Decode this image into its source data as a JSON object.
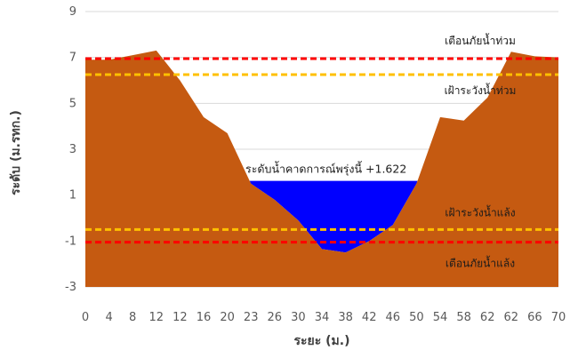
{
  "chart_data": {
    "type": "area",
    "title": "",
    "xlabel": "ระยะ (ม.)",
    "ylabel": "ระดับ (ม.รทก.)",
    "ylim": [
      -3,
      9
    ],
    "yticks": [
      9,
      7,
      5,
      3,
      1,
      -1,
      -3
    ],
    "x_tick_labels": [
      "0",
      "4",
      "8",
      "12",
      "12",
      "16",
      "20",
      "23",
      "26",
      "30",
      "34",
      "38",
      "42",
      "46",
      "50",
      "54",
      "58",
      "62",
      "62",
      "66",
      "70"
    ],
    "grid": "horizontal",
    "legend": "none",
    "ground_profile": {
      "y": [
        6.9,
        6.9,
        7.1,
        7.3,
        6.0,
        4.4,
        3.7,
        1.5,
        0.8,
        -0.1,
        -1.35,
        -1.5,
        -1.0,
        -0.3,
        1.5,
        4.4,
        4.25,
        5.25,
        7.25,
        7.05,
        7.0
      ],
      "color": "#C55A11"
    },
    "water": {
      "level": 1.622,
      "label": "ระดับน้ำคาดการณ์พรุ่งนี้ +1.622",
      "color": "#0000FF"
    },
    "thresholds": [
      {
        "label": "เตือนภัยน้ำท่วม",
        "value": 6.95,
        "color": "#FF0000"
      },
      {
        "label": "เฝ้าระวังน้ำท่วม",
        "value": 6.25,
        "color": "#FFC000"
      },
      {
        "label": "เฝ้าระวังน้ำแล้ง",
        "value": -0.5,
        "color": "#FFC000"
      },
      {
        "label": "เตือนภัยน้ำแล้ง",
        "value": -1.05,
        "color": "#FF0000"
      }
    ]
  }
}
